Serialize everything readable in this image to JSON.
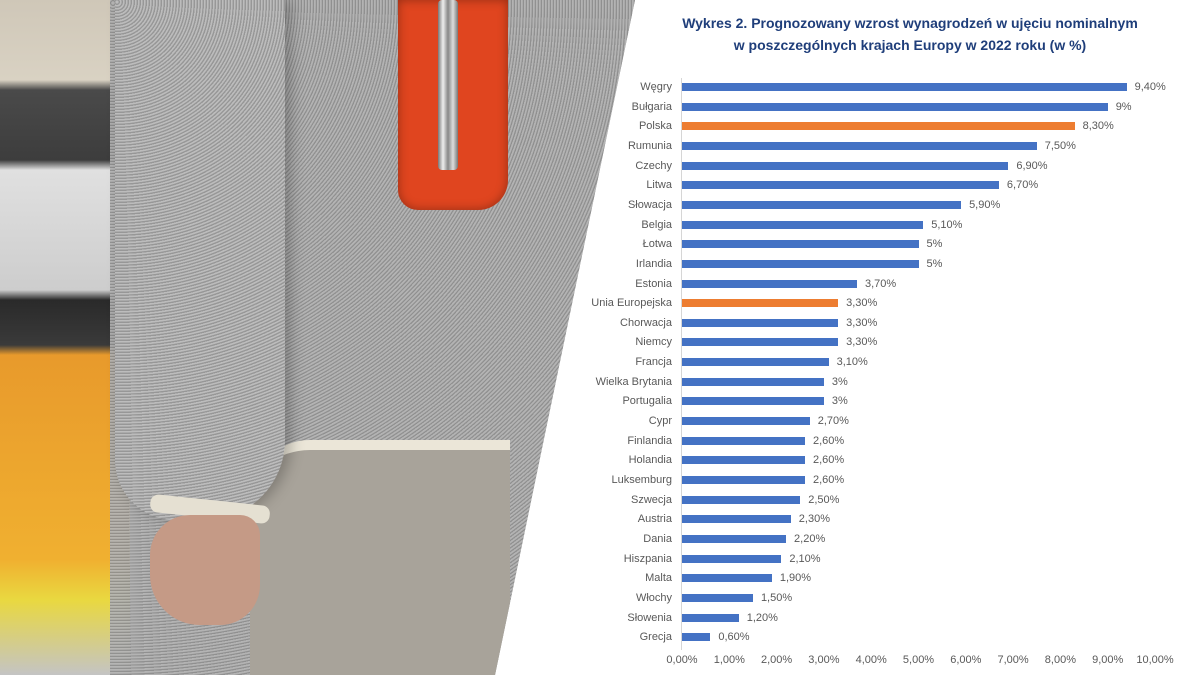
{
  "photo": {
    "description": "Person in grey sweater with orange wallet in pocket at store checkout"
  },
  "colors": {
    "bar_default": "#4472c4",
    "bar_highlight": "#ed7d31",
    "title": "#1f3e7a",
    "text": "#595959"
  },
  "chart_data": {
    "type": "bar",
    "orientation": "horizontal",
    "title": "Wykres 2. Prognozowany wzrost wynagrodzeń w ujęciu nominalnym w poszczególnych krajach Europy w 2022 roku (w %)",
    "title_lines": [
      "Wykres 2. Prognozowany wzrost wynagrodzeń w ujęciu nominalnym",
      "w poszczególnych krajach Europy w 2022 roku (w %)"
    ],
    "xlabel": "",
    "ylabel": "",
    "xlim": [
      0,
      10
    ],
    "grid": false,
    "legend": null,
    "x_ticks": [
      "0,00%",
      "1,00%",
      "2,00%",
      "3,00%",
      "4,00%",
      "5,00%",
      "6,00%",
      "7,00%",
      "8,00%",
      "9,00%",
      "10,00%"
    ],
    "categories": [
      "Węgry",
      "Bułgaria",
      "Polska",
      "Rumunia",
      "Czechy",
      "Litwa",
      "Słowacja",
      "Belgia",
      "Łotwa",
      "Irlandia",
      "Estonia",
      "Unia Europejska",
      "Chorwacja",
      "Niemcy",
      "Francja",
      "Wielka Brytania",
      "Portugalia",
      "Cypr",
      "Finlandia",
      "Holandia",
      "Luksemburg",
      "Szwecja",
      "Austria",
      "Dania",
      "Hiszpania",
      "Malta",
      "Włochy",
      "Słowenia",
      "Grecja"
    ],
    "values": [
      9.4,
      9.0,
      8.3,
      7.5,
      6.9,
      6.7,
      5.9,
      5.1,
      5.0,
      5.0,
      3.7,
      3.3,
      3.3,
      3.3,
      3.1,
      3.0,
      3.0,
      2.7,
      2.6,
      2.6,
      2.6,
      2.5,
      2.3,
      2.2,
      2.1,
      1.9,
      1.5,
      1.2,
      0.6
    ],
    "labels": [
      "9,40%",
      "9%",
      "8,30%",
      "7,50%",
      "6,90%",
      "6,70%",
      "5,90%",
      "5,10%",
      "5%",
      "5%",
      "3,70%",
      "3,30%",
      "3,30%",
      "3,30%",
      "3,10%",
      "3%",
      "3%",
      "2,70%",
      "2,60%",
      "2,60%",
      "2,60%",
      "2,50%",
      "2,30%",
      "2,20%",
      "2,10%",
      "1,90%",
      "1,50%",
      "1,20%",
      "0,60%"
    ],
    "highlighted": [
      "Polska",
      "Unia Europejska"
    ]
  }
}
